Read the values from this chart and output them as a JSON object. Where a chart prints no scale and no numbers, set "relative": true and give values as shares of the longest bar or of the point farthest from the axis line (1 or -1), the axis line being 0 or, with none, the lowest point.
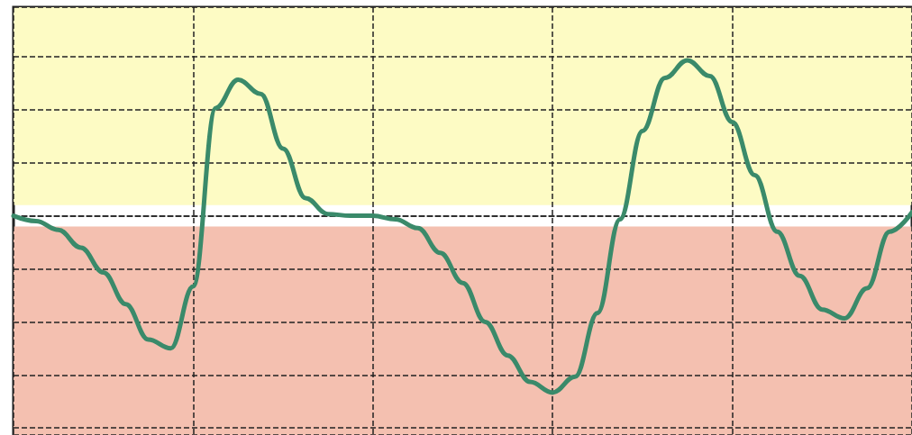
{
  "chart_data": {
    "type": "line",
    "relative": true,
    "grid": true,
    "marker": "none",
    "line_style": "solid",
    "categories": [
      null,
      null,
      null,
      null,
      null,
      null,
      null,
      null,
      null,
      null,
      null,
      null,
      null,
      null,
      null,
      null,
      null,
      null,
      null,
      null,
      null,
      null,
      null,
      null,
      null,
      null,
      null,
      null,
      null,
      null,
      null,
      null,
      null,
      null,
      null,
      null,
      null,
      null,
      null,
      null,
      null
    ],
    "series": [
      {
        "color": "#3a8a6a",
        "values": [
          0,
          -0.03,
          -0.08,
          -0.18,
          -0.32,
          -0.5,
          -0.7,
          -0.75,
          -0.4,
          0.61,
          0.77,
          0.69,
          0.38,
          0.1,
          0.01,
          0,
          0,
          -0.02,
          -0.07,
          -0.21,
          -0.38,
          -0.6,
          -0.79,
          -0.94,
          -1,
          -0.91,
          -0.55,
          -0.02,
          0.48,
          0.78,
          0.88,
          0.79,
          0.53,
          0.23,
          -0.09,
          -0.34,
          -0.53,
          -0.58,
          -0.41,
          -0.09,
          0.02
        ]
      }
    ],
    "bands": [
      {
        "axis": "y",
        "from": 0.06,
        "to": 1.18,
        "color": "#fdfbc4"
      },
      {
        "axis": "y",
        "from": -1.24,
        "to": -0.06,
        "color": "#f4c0b0"
      }
    ]
  }
}
